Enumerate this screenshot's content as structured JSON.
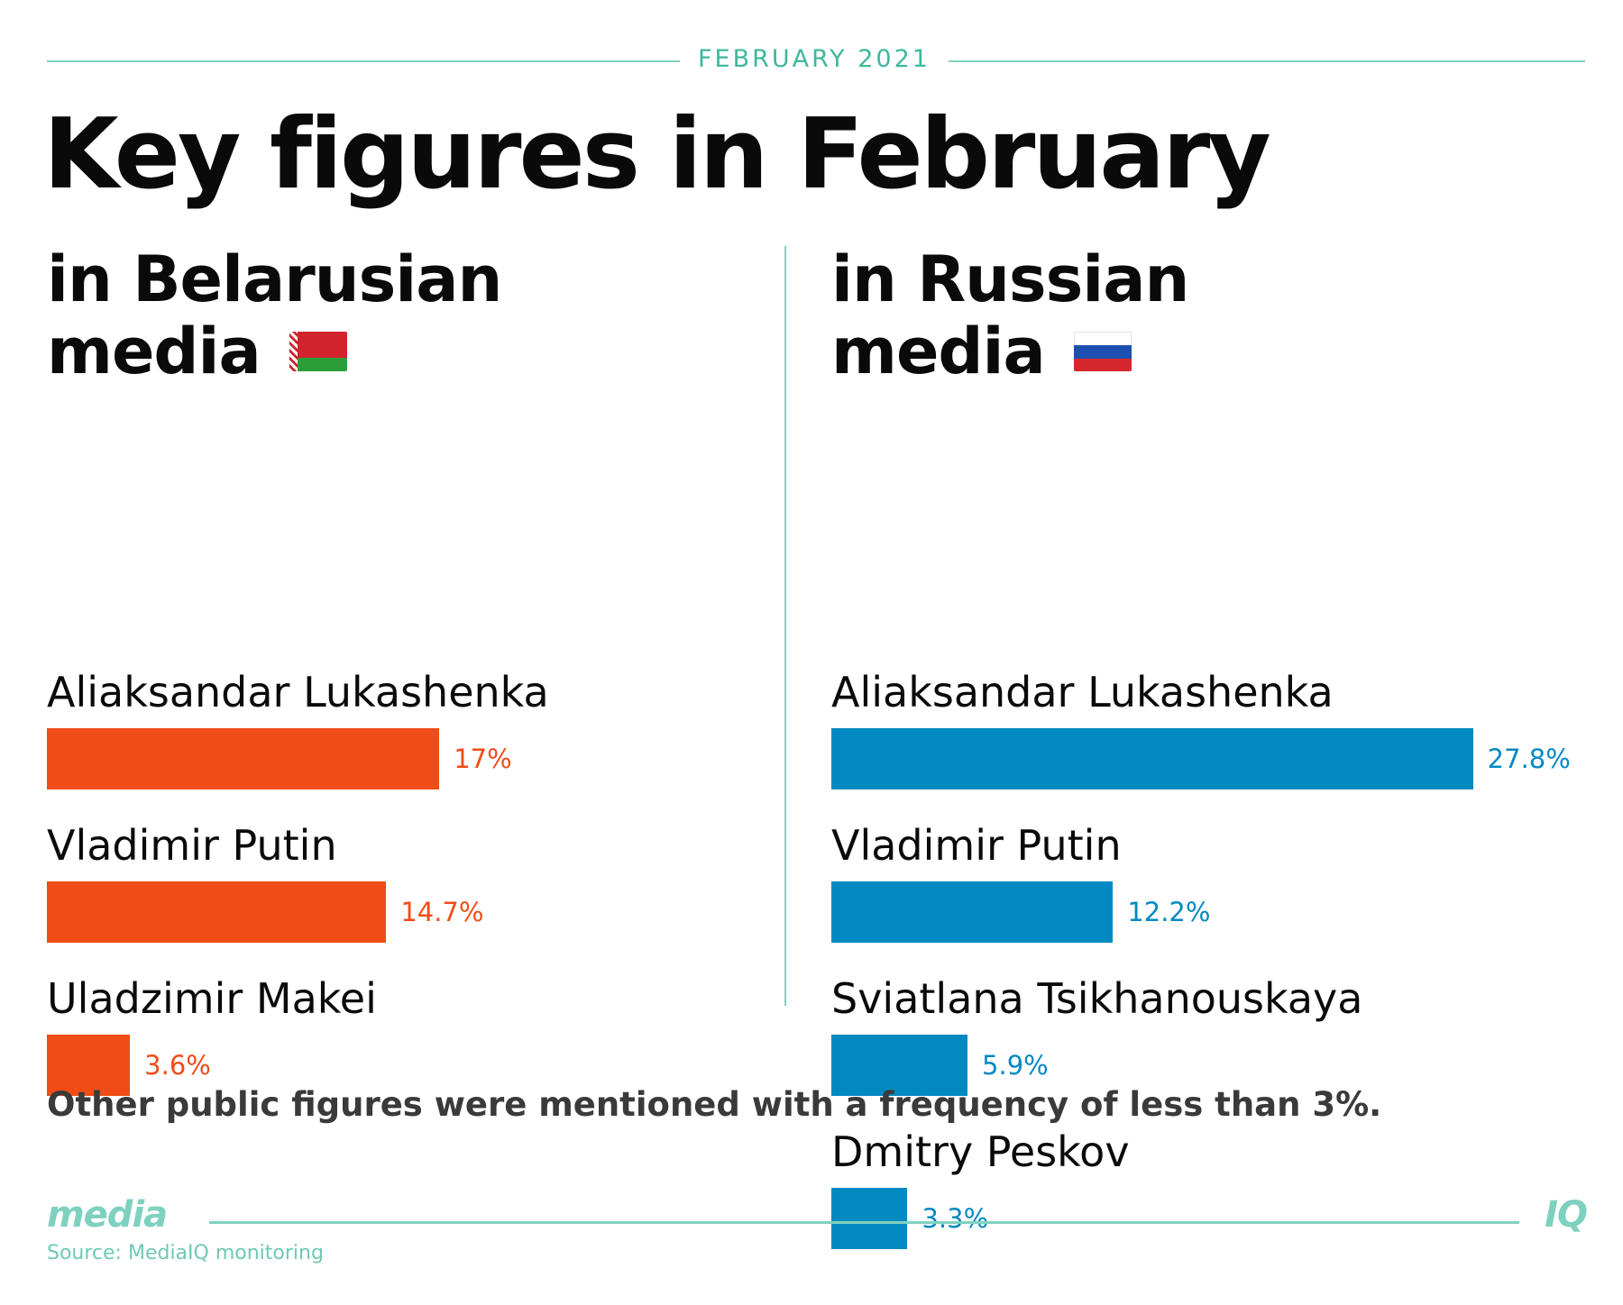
{
  "header": {
    "date": "FEBRUARY 2021",
    "title": "Key figures in February"
  },
  "panels": [
    {
      "key": "by",
      "title_line1": "in Belarusian",
      "title_line2": "media",
      "flag_icon": "belarus-flag-icon",
      "color": "#f04c17"
    },
    {
      "key": "ru",
      "title_line1": "in Russian",
      "title_line2": "media",
      "flag_icon": "russia-flag-icon",
      "color": "#0389c2"
    }
  ],
  "chart_data": [
    {
      "type": "bar",
      "title": "in Belarusian media",
      "unit": "%",
      "xlim": [
        0,
        30
      ],
      "color": "#f04c17",
      "categories": [
        "Aliaksandar Lukashenka",
        "Vladimir Putin",
        "Uladzimir Makei"
      ],
      "values": [
        17,
        14.7,
        3.6
      ],
      "labels": [
        "17%",
        "14.7%",
        "3.6%"
      ]
    },
    {
      "type": "bar",
      "title": "in Russian media",
      "unit": "%",
      "xlim": [
        0,
        30
      ],
      "color": "#0389c2",
      "categories": [
        "Aliaksandar Lukashenka",
        "Vladimir Putin",
        "Sviatlana Tsikhanouskaya",
        "Dmitry Peskov"
      ],
      "values": [
        27.8,
        12.2,
        5.9,
        3.3
      ],
      "labels": [
        "27.8%",
        "12.2%",
        "5.9%",
        "3.3%"
      ]
    }
  ],
  "footnote": "Other public figures were mentioned with a frequency of less than 3%.",
  "footer": {
    "brand_left": "media",
    "brand_right": "IQ",
    "source": "Source: MediaIQ monitoring"
  }
}
